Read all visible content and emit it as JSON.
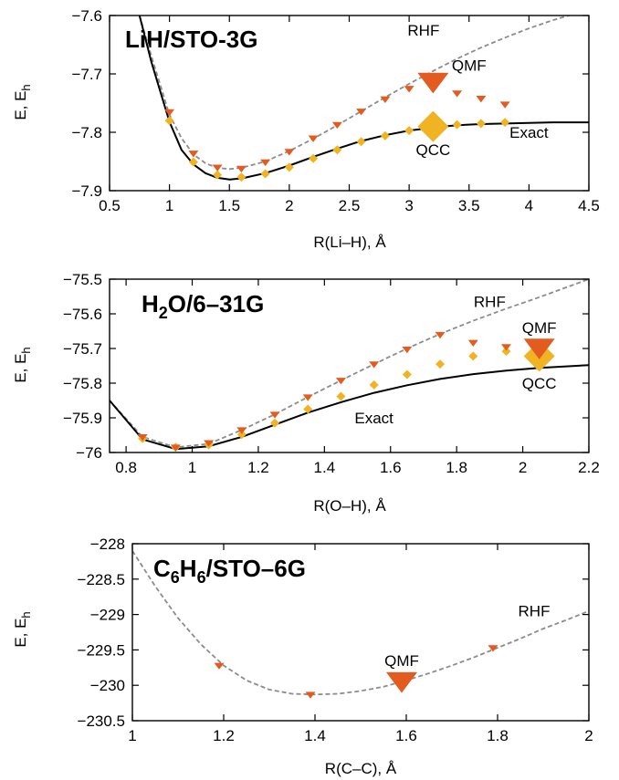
{
  "colors": {
    "qmf": "#e35b1f",
    "qcc": "#f0b323",
    "rhf": "#8c8c8c",
    "exact": "#000000"
  },
  "chart_data": [
    {
      "type": "line",
      "title_main": "LiH/STO-3G",
      "title_sub": "",
      "title_tail": "",
      "xlabel": "R(Li–H), Å",
      "ylabel_main": "E, E",
      "ylabel_sub": "h",
      "xlim": [
        0.5,
        4.5
      ],
      "ylim": [
        -7.9,
        -7.6
      ],
      "xticks": [
        0.5,
        1,
        1.5,
        2,
        2.5,
        3,
        3.5,
        4,
        4.5
      ],
      "xtick_labels": [
        "0.5",
        "1",
        "1.5",
        "2",
        "2.5",
        "3",
        "3.5",
        "4",
        "4.5"
      ],
      "yticks": [
        -7.9,
        -7.8,
        -7.7,
        -7.6
      ],
      "ytick_labels": [
        "−7.9",
        "−7.8",
        "−7.7",
        "−7.6"
      ],
      "series": [
        {
          "name": "RHF",
          "style": "dashed",
          "x": [
            0.75,
            0.85,
            1.0,
            1.1,
            1.2,
            1.3,
            1.4,
            1.5,
            1.6,
            1.8,
            2.0,
            2.2,
            2.4,
            2.6,
            2.8,
            3.0,
            3.2,
            3.4,
            3.6,
            3.8,
            4.0,
            4.2,
            4.5
          ],
          "y": [
            -7.6,
            -7.67,
            -7.77,
            -7.81,
            -7.838,
            -7.853,
            -7.861,
            -7.863,
            -7.861,
            -7.85,
            -7.832,
            -7.811,
            -7.788,
            -7.764,
            -7.74,
            -7.717,
            -7.695,
            -7.674,
            -7.655,
            -7.638,
            -7.622,
            -7.608,
            -7.59
          ]
        },
        {
          "name": "Exact",
          "style": "solid",
          "x": [
            0.75,
            0.85,
            1.0,
            1.1,
            1.2,
            1.3,
            1.4,
            1.5,
            1.6,
            1.8,
            2.0,
            2.2,
            2.4,
            2.6,
            2.8,
            3.0,
            3.2,
            3.4,
            3.6,
            3.8,
            4.0,
            4.2,
            4.5
          ],
          "y": [
            -7.6,
            -7.68,
            -7.782,
            -7.83,
            -7.855,
            -7.87,
            -7.878,
            -7.881,
            -7.879,
            -7.87,
            -7.857,
            -7.842,
            -7.828,
            -7.815,
            -7.805,
            -7.797,
            -7.792,
            -7.788,
            -7.786,
            -7.785,
            -7.784,
            -7.783,
            -7.783
          ]
        },
        {
          "name": "QMF",
          "style": "marker-triangle",
          "x": [
            1.0,
            1.2,
            1.4,
            1.6,
            1.8,
            2.0,
            2.2,
            2.4,
            2.6,
            2.8,
            3.0,
            3.2,
            3.4,
            3.6,
            3.8
          ],
          "y": [
            -7.765,
            -7.836,
            -7.86,
            -7.862,
            -7.851,
            -7.833,
            -7.81,
            -7.787,
            -7.764,
            -7.743,
            -7.725,
            -7.712,
            -7.733,
            -7.742,
            -7.752
          ],
          "large_index": 11
        },
        {
          "name": "QCC",
          "style": "marker-diamond",
          "x": [
            1.0,
            1.2,
            1.4,
            1.6,
            1.8,
            2.0,
            2.2,
            2.4,
            2.6,
            2.8,
            3.0,
            3.2,
            3.4,
            3.6,
            3.8
          ],
          "y": [
            -7.78,
            -7.851,
            -7.873,
            -7.877,
            -7.871,
            -7.86,
            -7.845,
            -7.83,
            -7.816,
            -7.806,
            -7.797,
            -7.79,
            -7.787,
            -7.785,
            -7.783
          ],
          "large_index": 11
        }
      ],
      "annotations": [
        {
          "text": "RHF",
          "x": 3.12,
          "y": -7.625
        },
        {
          "text": "QMF",
          "x": 3.5,
          "y": -7.685
        },
        {
          "text": "Exact",
          "x": 4.0,
          "y": -7.8
        },
        {
          "text": "QCC",
          "x": 3.2,
          "y": -7.83
        }
      ]
    },
    {
      "type": "line",
      "title_main": "H",
      "title_sub": "2",
      "title_tail": "O/6–31G",
      "xlabel": "R(O–H), Å",
      "ylabel_main": "E, E",
      "ylabel_sub": "h",
      "xlim": [
        0.75,
        2.2
      ],
      "ylim": [
        -76.0,
        -75.5
      ],
      "xticks": [
        0.8,
        1.0,
        1.2,
        1.4,
        1.6,
        1.8,
        2.0,
        2.2
      ],
      "xtick_labels": [
        "0.8",
        "1",
        "1.2",
        "1.4",
        "1.6",
        "1.8",
        "2",
        "2.2"
      ],
      "yticks": [
        -76.0,
        -75.9,
        -75.8,
        -75.7,
        -75.6,
        -75.5
      ],
      "ytick_labels": [
        "−76",
        "−75.9",
        "−75.8",
        "−75.7",
        "−75.6",
        "−75.5"
      ],
      "series": [
        {
          "name": "RHF",
          "style": "dashed",
          "x": [
            0.75,
            0.85,
            0.95,
            1.05,
            1.15,
            1.25,
            1.35,
            1.45,
            1.55,
            1.65,
            1.75,
            1.85,
            1.95,
            2.05,
            2.2
          ],
          "y": [
            -75.85,
            -75.955,
            -75.985,
            -75.975,
            -75.935,
            -75.89,
            -75.84,
            -75.792,
            -75.745,
            -75.7,
            -75.658,
            -75.62,
            -75.585,
            -75.552,
            -75.5
          ]
        },
        {
          "name": "Exact",
          "style": "solid",
          "x": [
            0.75,
            0.85,
            0.95,
            1.05,
            1.15,
            1.25,
            1.35,
            1.45,
            1.55,
            1.65,
            1.75,
            1.85,
            1.95,
            2.05,
            2.2
          ],
          "y": [
            -75.85,
            -75.962,
            -75.99,
            -75.982,
            -75.955,
            -75.92,
            -75.885,
            -75.855,
            -75.828,
            -75.806,
            -75.788,
            -75.774,
            -75.764,
            -75.756,
            -75.748
          ]
        },
        {
          "name": "QMF",
          "style": "marker-triangle",
          "x": [
            0.85,
            0.95,
            1.05,
            1.15,
            1.25,
            1.35,
            1.45,
            1.55,
            1.65,
            1.75,
            1.85,
            1.95,
            2.05
          ],
          "y": [
            -75.955,
            -75.985,
            -75.972,
            -75.935,
            -75.89,
            -75.84,
            -75.792,
            -75.745,
            -75.702,
            -75.66,
            -75.683,
            -75.695,
            -75.695
          ],
          "large_index": 12
        },
        {
          "name": "QCC",
          "style": "marker-diamond",
          "x": [
            0.85,
            0.95,
            1.05,
            1.15,
            1.25,
            1.35,
            1.45,
            1.55,
            1.65,
            1.75,
            1.85,
            1.95,
            2.05
          ],
          "y": [
            -75.96,
            -75.985,
            -75.978,
            -75.948,
            -75.915,
            -75.875,
            -75.838,
            -75.805,
            -75.775,
            -75.745,
            -75.722,
            -75.708,
            -75.722
          ],
          "large_index": 12
        }
      ],
      "annotations": [
        {
          "text": "RHF",
          "x": 1.9,
          "y": -75.565
        },
        {
          "text": "QMF",
          "x": 2.05,
          "y": -75.64
        },
        {
          "text": "QCC",
          "x": 2.05,
          "y": -75.8
        },
        {
          "text": "Exact",
          "x": 1.55,
          "y": -75.9
        }
      ]
    },
    {
      "type": "line",
      "title_main": "C",
      "title_sub": "6",
      "title_tail": "H",
      "title_sub2": "6",
      "title_tail2": "/STO–6G",
      "xlabel": "R(C–C), Å",
      "ylabel_main": "E, E",
      "ylabel_sub": "h",
      "xlim": [
        1.0,
        2.0
      ],
      "ylim": [
        -230.5,
        -228.0
      ],
      "xticks": [
        1.0,
        1.2,
        1.4,
        1.6,
        1.8,
        2.0
      ],
      "xtick_labels": [
        "1",
        "1.2",
        "1.4",
        "1.6",
        "1.8",
        "2"
      ],
      "yticks": [
        -230.5,
        -230.0,
        -229.5,
        -229.0,
        -228.5,
        -228.0
      ],
      "ytick_labels": [
        "−230.5",
        "−230",
        "−229.5",
        "−229",
        "−228.5",
        "−228"
      ],
      "series": [
        {
          "name": "RHF",
          "style": "dashed",
          "x": [
            1.0,
            1.05,
            1.1,
            1.15,
            1.2,
            1.25,
            1.3,
            1.35,
            1.4,
            1.45,
            1.5,
            1.55,
            1.6,
            1.65,
            1.7,
            1.75,
            1.8,
            1.85,
            1.9,
            1.95,
            2.0
          ],
          "y": [
            -228.1,
            -228.6,
            -229.05,
            -229.42,
            -229.72,
            -229.93,
            -230.06,
            -230.12,
            -230.13,
            -230.12,
            -230.08,
            -230.02,
            -229.93,
            -229.83,
            -229.72,
            -229.6,
            -229.47,
            -229.34,
            -229.2,
            -229.08,
            -228.95
          ]
        },
        {
          "name": "QMF",
          "style": "marker-triangle",
          "x": [
            1.19,
            1.39,
            1.59,
            1.79
          ],
          "y": [
            -229.72,
            -230.13,
            -229.93,
            -229.47
          ],
          "large_index": 2
        }
      ],
      "annotations": [
        {
          "text": "RHF",
          "x": 1.88,
          "y": -228.95
        },
        {
          "text": "QMF",
          "x": 1.59,
          "y": -229.65
        }
      ]
    }
  ]
}
